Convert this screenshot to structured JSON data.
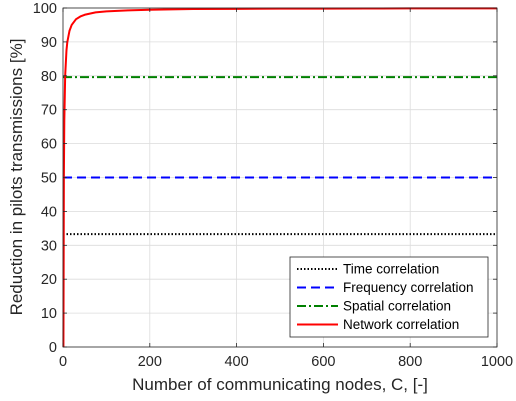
{
  "chart_data": {
    "type": "line",
    "title": "",
    "xlabel": "Number of communicating nodes, C, [-]",
    "ylabel": "Reduction in pilots transmissions [%]",
    "xlim": [
      0,
      1000
    ],
    "ylim": [
      0,
      100
    ],
    "xticks": [
      "0",
      "200",
      "400",
      "600",
      "800",
      "1000"
    ],
    "yticks": [
      "0",
      "10",
      "20",
      "30",
      "40",
      "50",
      "60",
      "70",
      "80",
      "90",
      "100"
    ],
    "grid": true,
    "legend_position": "bottom-right",
    "series": [
      {
        "name": "Time correlation",
        "style": "dotted",
        "color": "#000000",
        "x": [
          0,
          1000
        ],
        "y": [
          33.3,
          33.3
        ]
      },
      {
        "name": "Frequency correlation",
        "style": "dashed",
        "color": "#0000ff",
        "x": [
          0,
          1000
        ],
        "y": [
          50,
          50
        ]
      },
      {
        "name": "Spatial correlation",
        "style": "dash-dot",
        "color": "#008000",
        "x": [
          0,
          1000
        ],
        "y": [
          79.6,
          79.6
        ]
      },
      {
        "name": "Network correlation",
        "style": "solid",
        "color": "#ff0000",
        "x": [
          1,
          2,
          3,
          5,
          8,
          10,
          15,
          20,
          30,
          40,
          50,
          75,
          100,
          150,
          200,
          300,
          400,
          500,
          600,
          700,
          800,
          900,
          1000
        ],
        "y": [
          0,
          50,
          66.7,
          80,
          87.5,
          90,
          93.3,
          95,
          96.7,
          97.5,
          98,
          98.7,
          99,
          99.3,
          99.5,
          99.7,
          99.75,
          99.8,
          99.83,
          99.86,
          99.88,
          99.89,
          99.9
        ]
      }
    ]
  }
}
